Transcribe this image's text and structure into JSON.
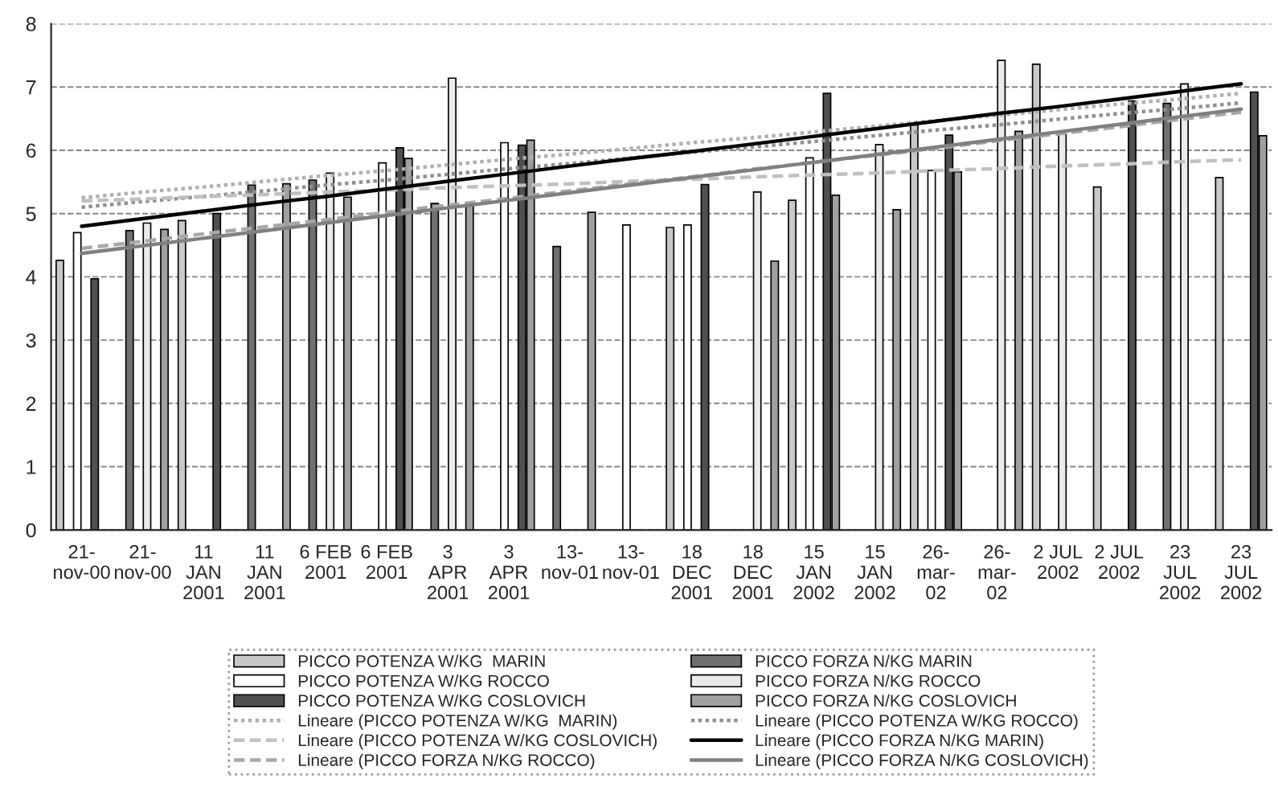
{
  "chart_data": {
    "type": "bar",
    "categories": [
      "21-\nnov-00",
      "21-\nnov-00",
      "11\nJAN\n2001",
      "11\nJAN\n2001",
      "6 FEB\n2001",
      "6 FEB\n2001",
      "3\nAPR\n2001",
      "3\nAPR\n2001",
      "13-\nnov-01",
      "13-\nnov-01",
      "18\nDEC\n2001",
      "18\nDEC\n2001",
      "15\nJAN\n2002",
      "15\nJAN\n2002",
      "26-\nmar-\n02",
      "26-\nmar-\n02",
      "2 JUL\n2002",
      "2 JUL\n2002",
      "23\nJUL\n2002",
      "23\nJUL\n2002"
    ],
    "series": [
      {
        "name": "PICCO POTENZA W/KG  MARIN",
        "color": "#c8c8c8",
        "values": [
          4.26,
          null,
          4.89,
          null,
          null,
          null,
          null,
          null,
          null,
          null,
          4.78,
          null,
          5.21,
          null,
          6.4,
          null,
          7.36,
          5.42,
          null,
          5.57
        ]
      },
      {
        "name": "PICCO FORZA N/KG MARIN",
        "color": "#707070",
        "values": [
          null,
          4.73,
          null,
          5.45,
          5.53,
          null,
          5.16,
          null,
          4.48,
          null,
          null,
          null,
          null,
          null,
          null,
          null,
          null,
          null,
          6.74,
          null
        ]
      },
      {
        "name": "PICCO POTENZA W/KG ROCCO",
        "color": "#ffffff",
        "values": [
          4.7,
          null,
          null,
          null,
          null,
          5.8,
          null,
          6.12,
          null,
          4.82,
          4.82,
          null,
          5.88,
          null,
          5.68,
          null,
          null,
          null,
          null,
          null
        ]
      },
      {
        "name": "PICCO FORZA N/KG ROCCO",
        "color": "#ebebeb",
        "values": [
          null,
          4.85,
          null,
          null,
          5.64,
          null,
          7.14,
          null,
          null,
          null,
          null,
          5.34,
          null,
          6.09,
          null,
          7.42,
          6.26,
          null,
          7.05,
          null
        ]
      },
      {
        "name": "PICCO POTENZA W/KG COSLOVICH",
        "color": "#505050",
        "values": [
          3.97,
          null,
          5.0,
          null,
          null,
          6.04,
          null,
          6.08,
          null,
          null,
          5.46,
          null,
          6.9,
          null,
          6.24,
          null,
          null,
          6.78,
          null,
          6.92
        ]
      },
      {
        "name": "PICCO FORZA N/KG COSLOVICH",
        "color": "#a0a0a0",
        "values": [
          null,
          4.75,
          null,
          5.47,
          5.26,
          5.87,
          5.14,
          6.16,
          5.02,
          null,
          null,
          4.25,
          5.29,
          5.06,
          5.66,
          6.3,
          null,
          null,
          null,
          6.23
        ]
      },
      {
        "name": "Lineare (PICCO POTENZA W/KG  MARIN)",
        "type": "line",
        "color": "#b0b0b0",
        "line_style": "dotted",
        "values": [
          5.25,
          5.34,
          5.42,
          5.51,
          5.6,
          5.68,
          5.77,
          5.86,
          5.94,
          6.03,
          6.12,
          6.2,
          6.29,
          6.38,
          6.47,
          6.55,
          6.64,
          6.73,
          6.81,
          6.9
        ]
      },
      {
        "name": "Lineare (PICCO POTENZA W/KG ROCCO)",
        "type": "line",
        "color": "#909090",
        "line_style": "dotted",
        "values": [
          5.1,
          5.19,
          5.27,
          5.36,
          5.45,
          5.53,
          5.62,
          5.71,
          5.79,
          5.88,
          5.97,
          6.05,
          6.14,
          6.23,
          6.32,
          6.4,
          6.49,
          6.58,
          6.66,
          6.75
        ]
      },
      {
        "name": "Lineare (PICCO POTENZA W/KG COSLOVICH)",
        "type": "line",
        "color": "#c0c0c0",
        "line_style": "dashed",
        "values": [
          5.2,
          5.23,
          5.27,
          5.3,
          5.34,
          5.37,
          5.41,
          5.44,
          5.47,
          5.51,
          5.54,
          5.58,
          5.61,
          5.64,
          5.68,
          5.71,
          5.75,
          5.78,
          5.82,
          5.85
        ]
      },
      {
        "name": "Lineare (PICCO FORZA N/KG MARIN)",
        "type": "line",
        "color": "#000000",
        "line_style": "solid",
        "values": [
          4.8,
          4.92,
          5.04,
          5.16,
          5.27,
          5.39,
          5.51,
          5.63,
          5.75,
          5.87,
          5.98,
          6.1,
          6.22,
          6.34,
          6.46,
          6.58,
          6.69,
          6.81,
          6.93,
          7.05
        ]
      },
      {
        "name": "Lineare (PICCO FORZA N/KG ROCCO)",
        "type": "line",
        "color": "#a8a8a8",
        "line_style": "dashed",
        "values": [
          4.45,
          4.56,
          4.68,
          4.79,
          4.9,
          5.02,
          5.13,
          5.24,
          5.36,
          5.47,
          5.58,
          5.7,
          5.81,
          5.92,
          6.03,
          6.15,
          6.26,
          6.37,
          6.49,
          6.6
        ]
      },
      {
        "name": "Lineare (PICCO FORZA N/KG COSLOVICH)",
        "type": "line",
        "color": "#808080",
        "line_style": "solid",
        "values": [
          4.37,
          4.49,
          4.61,
          4.73,
          4.85,
          4.97,
          5.09,
          5.21,
          5.33,
          5.45,
          5.57,
          5.69,
          5.81,
          5.93,
          6.05,
          6.17,
          6.29,
          6.41,
          6.53,
          6.65
        ]
      }
    ],
    "ylim": [
      0,
      8
    ],
    "yticks": [
      0,
      1,
      2,
      3,
      4,
      5,
      6,
      7,
      8
    ],
    "grid": "y",
    "legend": "bottom",
    "marker": "none"
  }
}
